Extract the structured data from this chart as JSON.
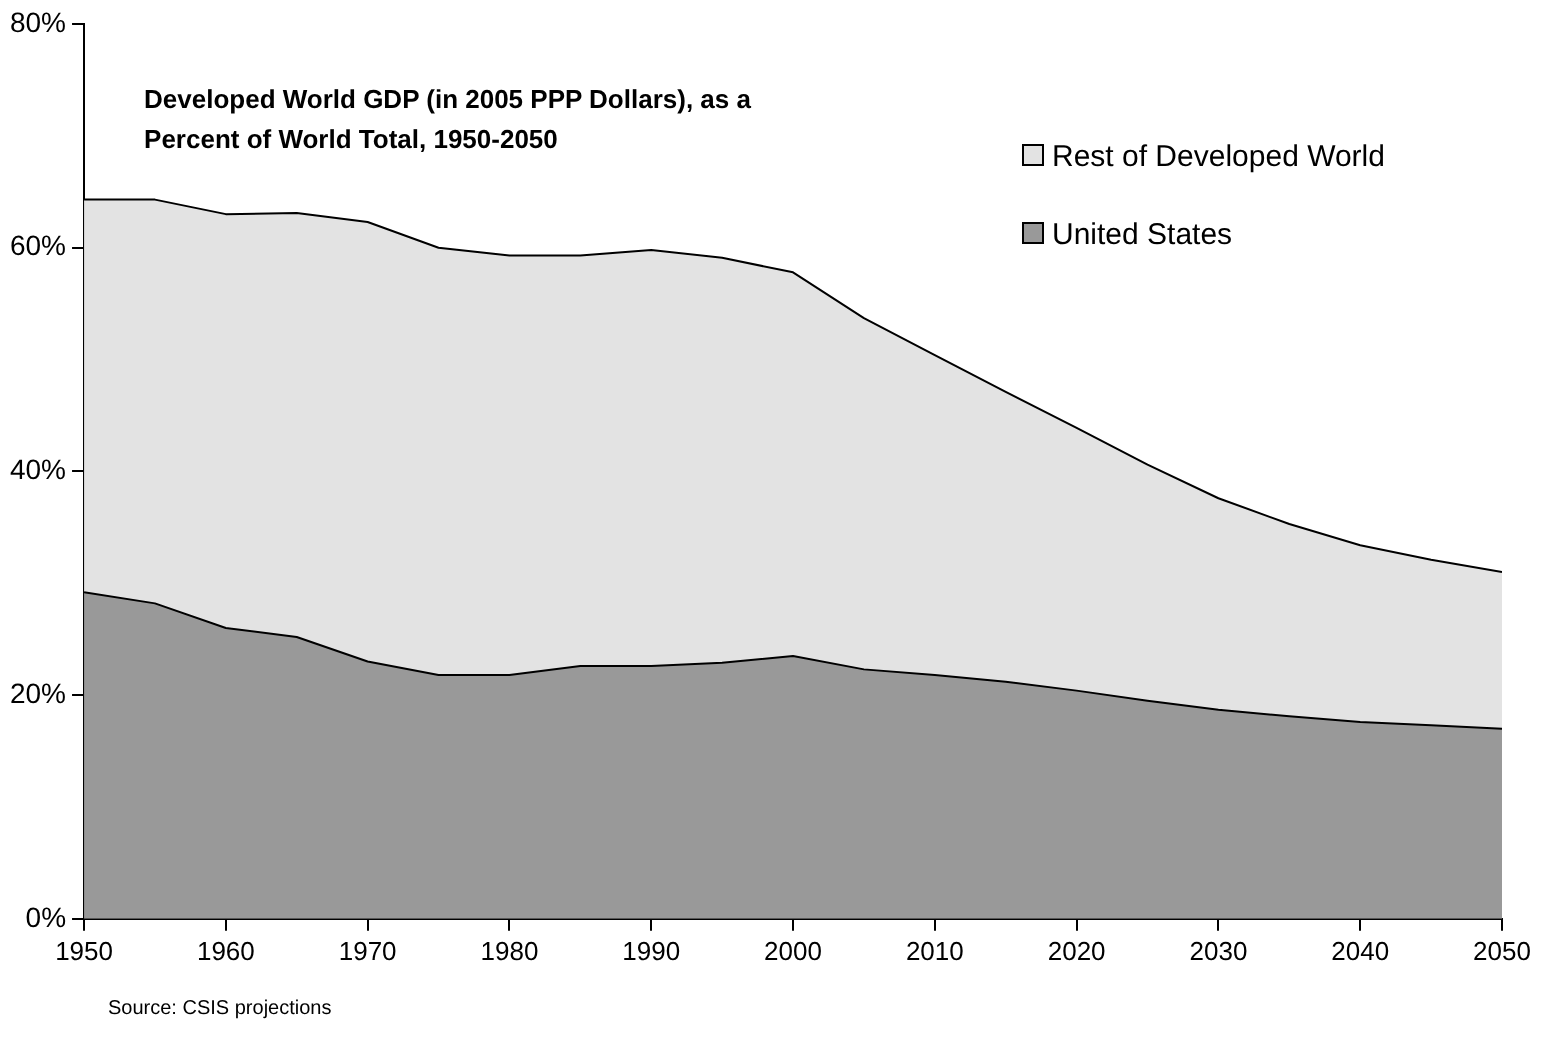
{
  "chart_data": {
    "type": "area",
    "title": "Developed World GDP (in 2005 PPP Dollars), as a Percent of World Total, 1950-2050",
    "stacked": true,
    "x": [
      1950,
      1955,
      1960,
      1965,
      1970,
      1975,
      1980,
      1985,
      1990,
      1995,
      2000,
      2005,
      2010,
      2015,
      2020,
      2025,
      2030,
      2035,
      2040,
      2045,
      2050
    ],
    "series": [
      {
        "name": "United States",
        "color": "#999999",
        "values": [
          29.2,
          28.2,
          26.0,
          25.2,
          23.0,
          21.8,
          21.8,
          22.6,
          22.6,
          22.9,
          23.5,
          22.3,
          21.8,
          21.2,
          20.4,
          19.5,
          18.7,
          18.1,
          17.6,
          17.3,
          17.0
        ]
      },
      {
        "name": "Rest of Developed World",
        "color": "#e3e3e3",
        "values": [
          35.1,
          36.1,
          37.0,
          37.9,
          39.3,
          38.2,
          37.5,
          36.7,
          37.2,
          36.2,
          34.3,
          31.4,
          28.6,
          25.9,
          23.5,
          21.1,
          18.9,
          17.2,
          15.8,
          14.8,
          14.0
        ]
      }
    ],
    "xlim": [
      1950,
      2050
    ],
    "xticks": [
      1950,
      1960,
      1970,
      1980,
      1990,
      2000,
      2010,
      2020,
      2030,
      2040,
      2050
    ],
    "ylim": [
      0,
      80
    ],
    "yticks": [
      {
        "value": 0,
        "label": "0%"
      },
      {
        "value": 20,
        "label": "20%"
      },
      {
        "value": 40,
        "label": "40%"
      },
      {
        "value": 60,
        "label": "60%"
      },
      {
        "value": 80,
        "label": "80%"
      }
    ],
    "grid": false,
    "legend": "top right",
    "annotations": [
      "Source: CSIS projections"
    ]
  }
}
